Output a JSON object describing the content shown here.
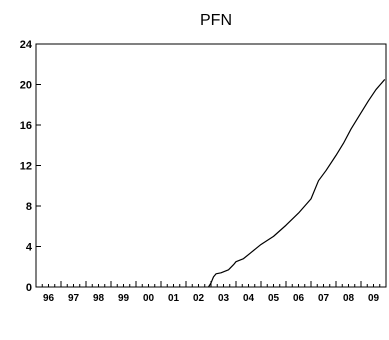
{
  "chart_data": {
    "type": "line",
    "title": "PFN",
    "xlabel": "",
    "ylabel": "",
    "ylim": [
      0,
      24
    ],
    "yticks": [
      0,
      4,
      8,
      12,
      16,
      20,
      24
    ],
    "xlim": [
      1996,
      2010
    ],
    "xticks": [
      {
        "label": "96",
        "value": 1996
      },
      {
        "label": "97",
        "value": 1997
      },
      {
        "label": "98",
        "value": 1998
      },
      {
        "label": "99",
        "value": 1999
      },
      {
        "label": "00",
        "value": 2000
      },
      {
        "label": "01",
        "value": 2001
      },
      {
        "label": "02",
        "value": 2002
      },
      {
        "label": "03",
        "value": 2003
      },
      {
        "label": "04",
        "value": 2004
      },
      {
        "label": "05",
        "value": 2005
      },
      {
        "label": "06",
        "value": 2006
      },
      {
        "label": "07",
        "value": 2007
      },
      {
        "label": "08",
        "value": 2008
      },
      {
        "label": "09",
        "value": 2009
      }
    ],
    "grid": false,
    "legend": "none",
    "line_color": "#000000",
    "series": [
      {
        "name": "",
        "x": [
          2002.9,
          2003.0,
          2003.1,
          2003.2,
          2003.4,
          2003.5,
          2003.7,
          2003.9,
          2004.0,
          2004.3,
          2004.6,
          2005.0,
          2005.5,
          2006.0,
          2006.5,
          2007.0,
          2007.3,
          2007.6,
          2008.0,
          2008.3,
          2008.6,
          2009.0,
          2009.3,
          2009.6,
          2009.95
        ],
        "y": [
          0.0,
          0.4,
          1.0,
          1.3,
          1.4,
          1.5,
          1.7,
          2.2,
          2.5,
          2.8,
          3.4,
          4.2,
          5.0,
          6.1,
          7.3,
          8.7,
          10.5,
          11.5,
          13.0,
          14.2,
          15.6,
          17.2,
          18.4,
          19.5,
          20.5
        ]
      }
    ]
  }
}
